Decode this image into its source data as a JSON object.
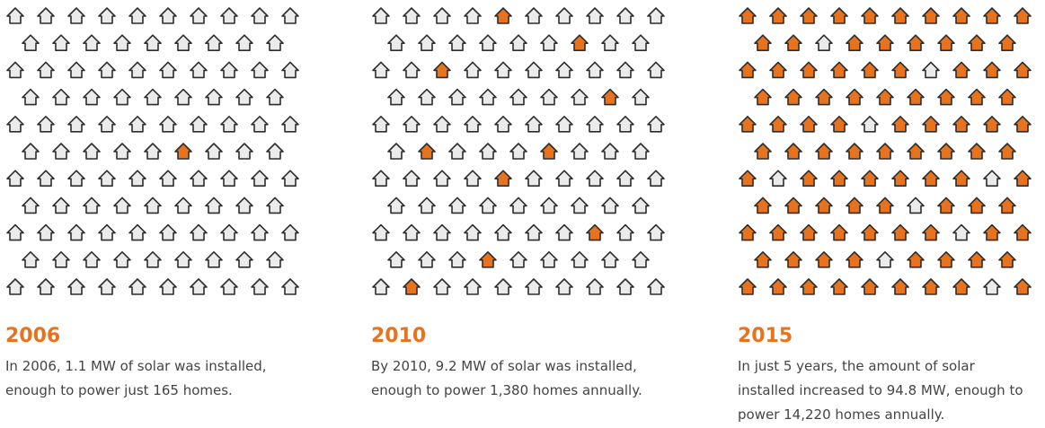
{
  "panels": [
    {
      "year": "2006",
      "lines": [
        "In 2006, 1.1 MW of solar was installed,",
        "enough to power just 165 homes."
      ]
    },
    {
      "year": "2010",
      "lines": [
        "By 2010, 9.2 MW of solar was installed,",
        "enough to power 1,380 homes annually."
      ]
    },
    {
      "year": "2015",
      "lines": [
        "In just 5 years, the amount of solar",
        "installed increased to 94.8 MW, enough to",
        "power 14,220 homes annually."
      ]
    }
  ]
}
